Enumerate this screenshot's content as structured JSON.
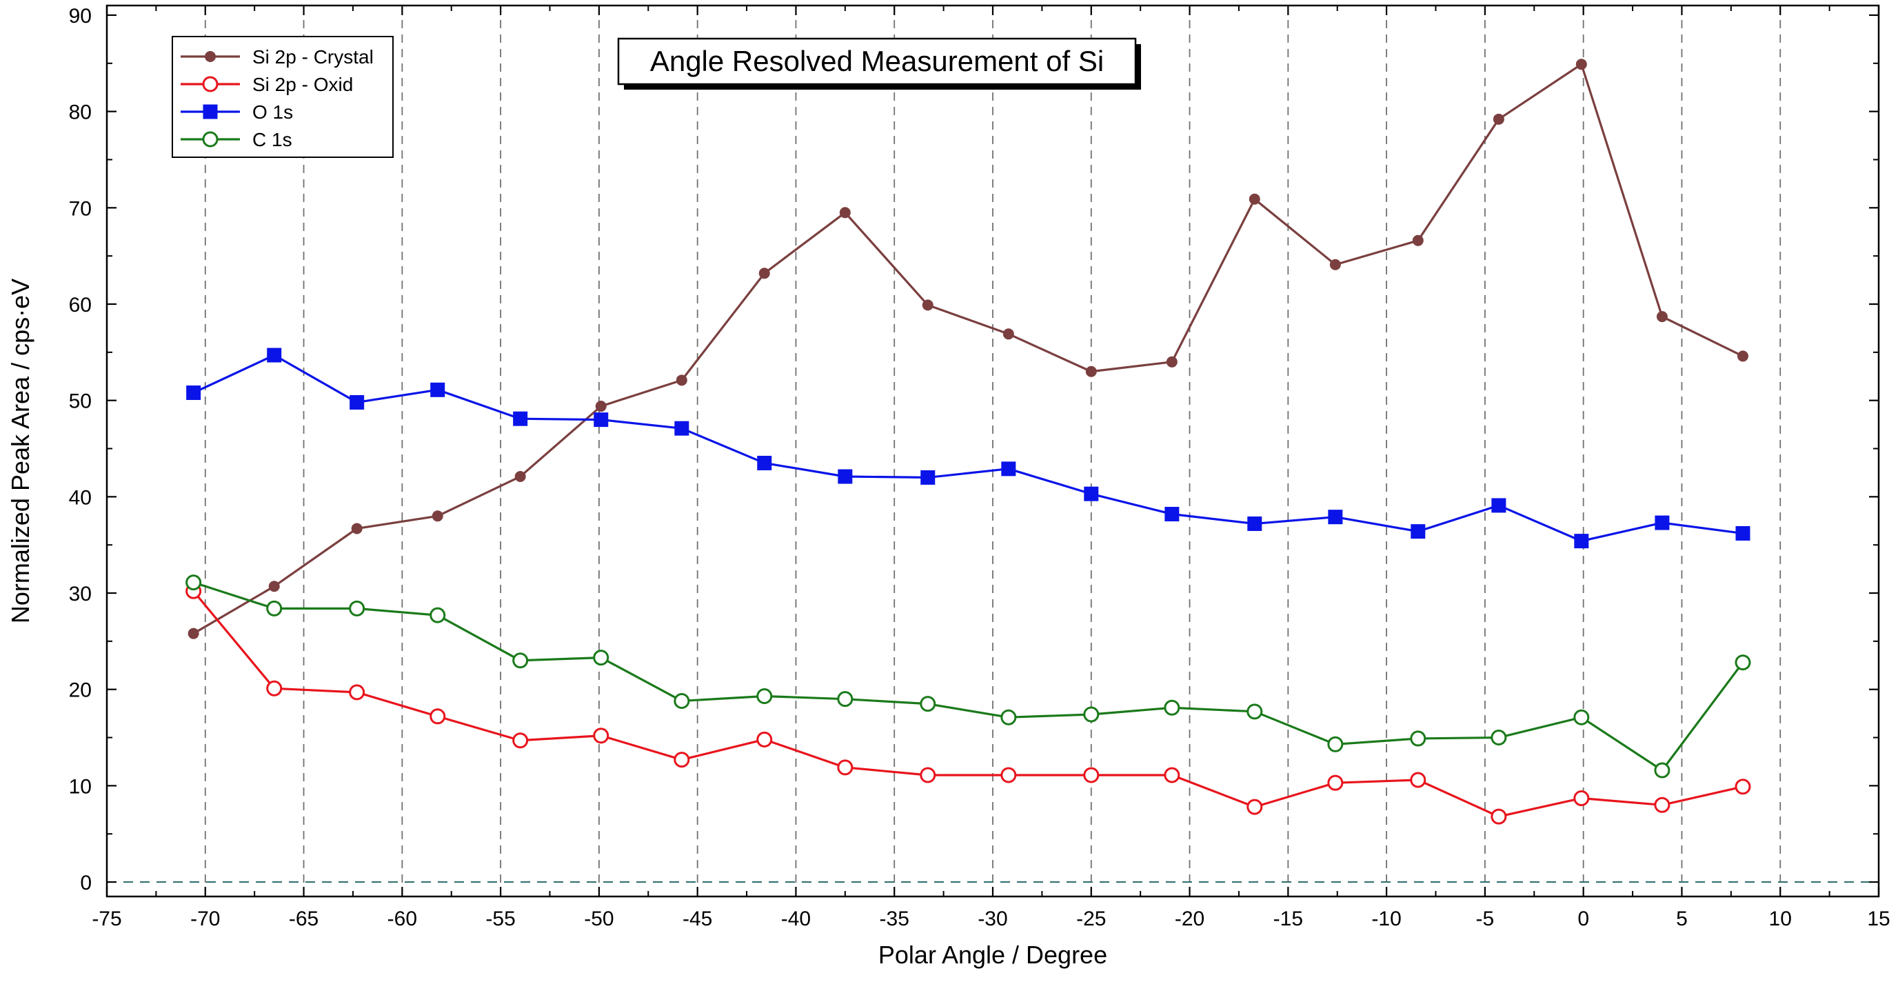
{
  "chart_data": {
    "type": "line",
    "title": "Angle Resolved Measurement of Si",
    "xlabel": "Polar Angle / Degree",
    "ylabel": "Normalized Peak Area / cps·eV",
    "xlim": [
      -75,
      15
    ],
    "ylim": [
      -1.5,
      91
    ],
    "xticks": [
      -75,
      -70,
      -65,
      -60,
      -55,
      -50,
      -45,
      -40,
      -35,
      -30,
      -25,
      -20,
      -15,
      -10,
      -5,
      0,
      5,
      10,
      15
    ],
    "xtick_labels": [
      "-75",
      "-70",
      "-65",
      "-60",
      "-55",
      "-50",
      "-45",
      "-40",
      "-35",
      "-30",
      "-25",
      "-20",
      "-15",
      "-10",
      "-5",
      "0",
      "5",
      "10",
      "15"
    ],
    "yticks": [
      0,
      10,
      20,
      30,
      40,
      50,
      60,
      70,
      80,
      90
    ],
    "ytick_labels": [
      "0",
      "10",
      "20",
      "30",
      "40",
      "50",
      "60",
      "70",
      "80",
      "90"
    ],
    "grid": "vertical dashed at major x ticks",
    "zero_line": 0,
    "legend_position": "top-left",
    "x": [
      -70.6,
      -66.5,
      -62.3,
      -58.2,
      -54.0,
      -49.9,
      -45.8,
      -41.6,
      -37.5,
      -33.3,
      -29.2,
      -25.0,
      -20.9,
      -16.7,
      -12.6,
      -8.4,
      -4.3,
      -0.1,
      4.0,
      8.1
    ],
    "series": [
      {
        "name": "Si 2p - Crystal",
        "color": "#7b3f3f",
        "marker": "filled-circle",
        "values": [
          25.8,
          30.7,
          36.7,
          38.0,
          42.1,
          49.4,
          52.1,
          63.2,
          69.5,
          59.9,
          56.9,
          53.0,
          54.0,
          70.9,
          64.1,
          66.6,
          79.2,
          84.9,
          58.7,
          54.6
        ]
      },
      {
        "name": "Si 2p - Oxid",
        "color": "#e8141c",
        "marker": "open-circle",
        "values": [
          30.2,
          20.1,
          19.7,
          17.2,
          14.7,
          15.2,
          12.7,
          14.8,
          11.9,
          11.1,
          11.1,
          11.1,
          11.1,
          7.8,
          10.3,
          10.6,
          6.8,
          8.7,
          8.0,
          9.9
        ]
      },
      {
        "name": "O 1s",
        "color": "#0a14e8",
        "marker": "filled-square",
        "values": [
          50.8,
          54.7,
          49.8,
          51.1,
          48.1,
          48.0,
          47.1,
          43.5,
          42.1,
          42.0,
          42.9,
          40.3,
          38.2,
          37.2,
          37.9,
          36.4,
          39.1,
          35.4,
          37.3,
          36.2
        ]
      },
      {
        "name": "C 1s",
        "color": "#1a7a1a",
        "marker": "open-circle",
        "values": [
          31.1,
          28.4,
          28.4,
          27.7,
          23.0,
          23.3,
          18.8,
          19.3,
          19.0,
          18.5,
          17.1,
          17.4,
          18.1,
          17.7,
          14.3,
          14.9,
          15.0,
          17.1,
          11.6,
          22.8
        ]
      }
    ]
  }
}
